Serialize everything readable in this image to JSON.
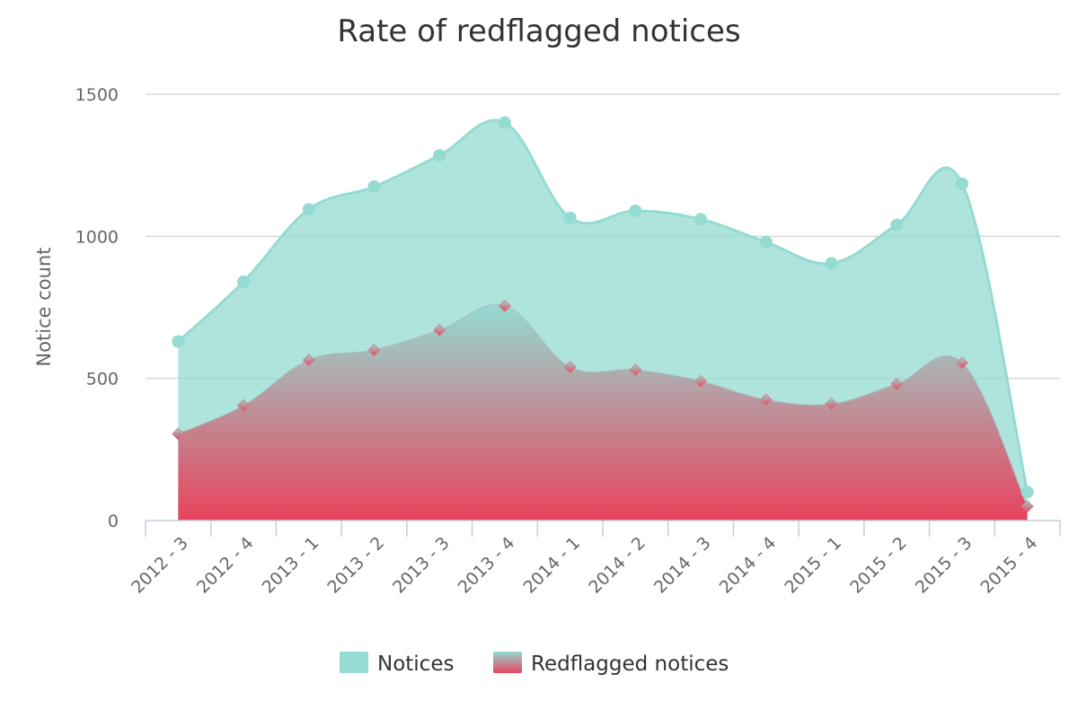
{
  "chart_data": {
    "type": "area",
    "title": "Rate of redflagged notices",
    "xlabel": "",
    "ylabel": "Notice count",
    "ylim": [
      0,
      1500
    ],
    "yticks": [
      "0",
      "500",
      "1000",
      "1500"
    ],
    "categories": [
      "2012 - 3",
      "2012 - 4",
      "2013 - 1",
      "2013 - 2",
      "2013 - 3",
      "2013 - 4",
      "2014 - 1",
      "2014 - 2",
      "2014 - 3",
      "2014 - 4",
      "2015 - 1",
      "2015 - 2",
      "2015 - 3",
      "2015 - 4"
    ],
    "series": [
      {
        "name": "Notices",
        "color": "#94dbd2",
        "marker": "circle",
        "values": [
          630,
          840,
          1095,
          1175,
          1285,
          1400,
          1065,
          1090,
          1060,
          980,
          905,
          1040,
          1185,
          100
        ]
      },
      {
        "name": "Redflagged notices",
        "color_top": "#94dbd2",
        "color_bottom": "#e8435d",
        "marker": "diamond",
        "values": [
          305,
          405,
          565,
          600,
          670,
          755,
          540,
          530,
          490,
          425,
          410,
          480,
          555,
          50
        ]
      }
    ],
    "grid": true,
    "legend": "bottom-center"
  }
}
